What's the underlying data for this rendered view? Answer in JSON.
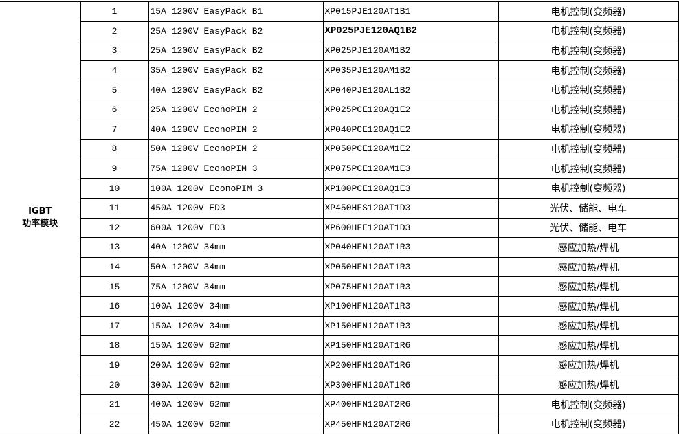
{
  "category": {
    "line1": "IGBT",
    "line2": "功率模块"
  },
  "rows": [
    {
      "no": "1",
      "desc": "15A 1200V EasyPack B1",
      "part": "XP015PJE120AT1B1",
      "app": "电机控制(变频器)"
    },
    {
      "no": "2",
      "desc": "25A 1200V EasyPack B2",
      "part": "XP025PJE120AQ1B2",
      "app": "电机控制(变频器)",
      "bold": true
    },
    {
      "no": "3",
      "desc": "25A 1200V EasyPack B2",
      "part": "XP025PJE120AM1B2",
      "app": "电机控制(变频器)"
    },
    {
      "no": "4",
      "desc": "35A 1200V EasyPack B2",
      "part": "XP035PJE120AM1B2",
      "app": "电机控制(变频器)"
    },
    {
      "no": "5",
      "desc": "40A 1200V EasyPack B2",
      "part": "XP040PJE120AL1B2",
      "app": "电机控制(变频器)"
    },
    {
      "no": "6",
      "desc": "25A 1200V EconoPIM 2",
      "part": "XP025PCE120AQ1E2",
      "app": "电机控制(变频器)"
    },
    {
      "no": "7",
      "desc": "40A 1200V EconoPIM 2",
      "part": "XP040PCE120AQ1E2",
      "app": "电机控制(变频器)"
    },
    {
      "no": "8",
      "desc": "50A 1200V EconoPIM 2",
      "part": "XP050PCE120AM1E2",
      "app": "电机控制(变频器)"
    },
    {
      "no": "9",
      "desc": "75A 1200V EconoPIM 3",
      "part": "XP075PCE120AM1E3",
      "app": "电机控制(变频器)"
    },
    {
      "no": "10",
      "desc": "100A 1200V EconoPIM 3",
      "part": "XP100PCE120AQ1E3",
      "app": "电机控制(变频器)"
    },
    {
      "no": "11",
      "desc": "450A 1200V ED3",
      "part": "XP450HFS120AT1D3",
      "app": "光伏、储能、电车"
    },
    {
      "no": "12",
      "desc": "600A 1200V ED3",
      "part": "XP600HFE120AT1D3",
      "app": "光伏、储能、电车"
    },
    {
      "no": "13",
      "desc": "40A 1200V 34mm",
      "part": "XP040HFN120AT1R3",
      "app": "感应加热/焊机"
    },
    {
      "no": "14",
      "desc": "50A 1200V 34mm",
      "part": "XP050HFN120AT1R3",
      "app": "感应加热/焊机"
    },
    {
      "no": "15",
      "desc": "75A 1200V 34mm",
      "part": "XP075HFN120AT1R3",
      "app": "感应加热/焊机"
    },
    {
      "no": "16",
      "desc": "100A 1200V 34mm",
      "part": "XP100HFN120AT1R3",
      "app": "感应加热/焊机"
    },
    {
      "no": "17",
      "desc": "150A 1200V 34mm",
      "part": "XP150HFN120AT1R3",
      "app": "感应加热/焊机"
    },
    {
      "no": "18",
      "desc": "150A 1200V 62mm",
      "part": "XP150HFN120AT1R6",
      "app": "感应加热/焊机"
    },
    {
      "no": "19",
      "desc": "200A 1200V 62mm",
      "part": "XP200HFN120AT1R6",
      "app": "感应加热/焊机"
    },
    {
      "no": "20",
      "desc": "300A 1200V 62mm",
      "part": "XP300HFN120AT1R6",
      "app": "感应加热/焊机"
    },
    {
      "no": "21",
      "desc": "400A 1200V 62mm",
      "part": "XP400HFN120AT2R6",
      "app": "电机控制(变频器)"
    },
    {
      "no": "22",
      "desc": "450A 1200V 62mm",
      "part": "XP450HFN120AT2R6",
      "app": "电机控制(变频器)"
    }
  ]
}
